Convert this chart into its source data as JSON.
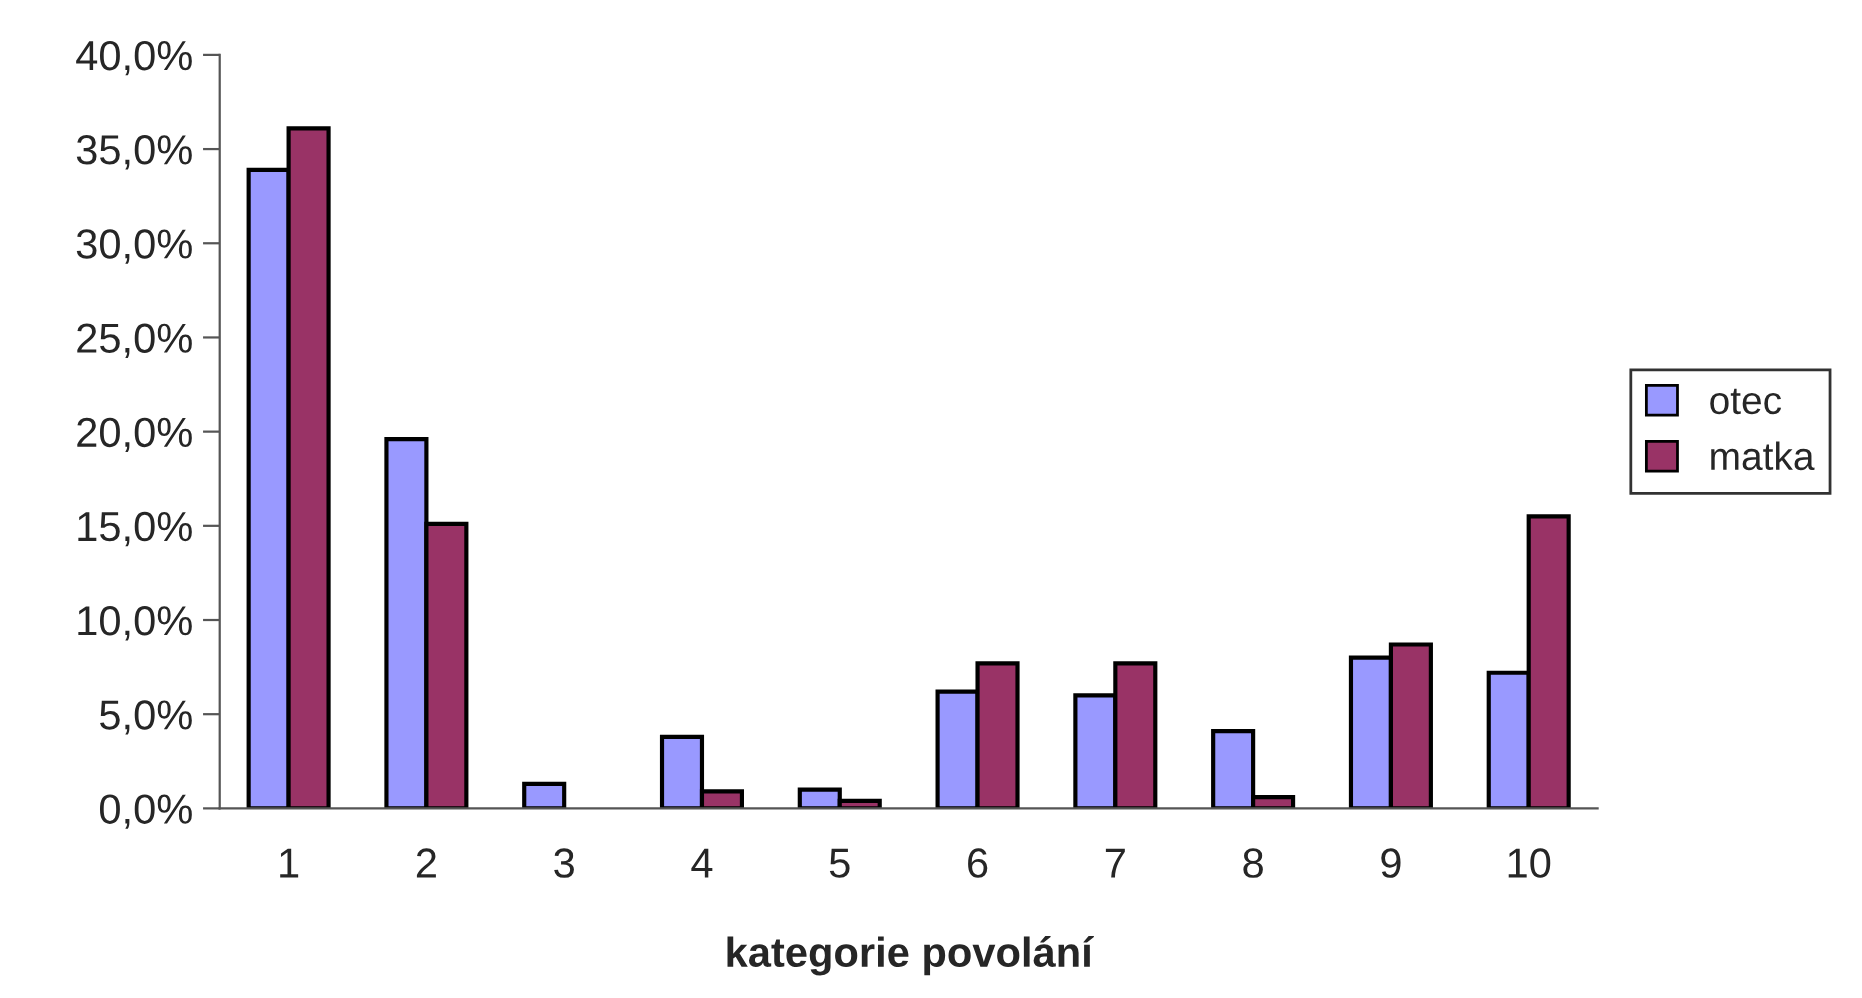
{
  "chart_data": {
    "type": "bar",
    "xlabel": "kategorie povolání",
    "categories": [
      "1",
      "2",
      "3",
      "4",
      "5",
      "6",
      "7",
      "8",
      "9",
      "10"
    ],
    "series": [
      {
        "name": "otec",
        "color": "#9999ff",
        "values": [
          33.9,
          19.6,
          1.3,
          3.8,
          1.0,
          6.2,
          6.0,
          4.1,
          8.0,
          7.2
        ]
      },
      {
        "name": "matka",
        "color": "#993366",
        "values": [
          36.1,
          15.1,
          null,
          0.9,
          0.4,
          7.7,
          7.7,
          0.6,
          8.7,
          15.5
        ]
      }
    ],
    "ylim": [
      0,
      40
    ],
    "yticks": [
      {
        "value": 0,
        "label": "0,0%"
      },
      {
        "value": 5,
        "label": "5,0%"
      },
      {
        "value": 10,
        "label": "10,0%"
      },
      {
        "value": 15,
        "label": "15,0%"
      },
      {
        "value": 20,
        "label": "20,0%"
      },
      {
        "value": 25,
        "label": "25,0%"
      },
      {
        "value": 30,
        "label": "30,0%"
      },
      {
        "value": 35,
        "label": "35,0%"
      },
      {
        "value": 40,
        "label": "40,0%"
      }
    ],
    "grid": false,
    "legend": "right"
  }
}
